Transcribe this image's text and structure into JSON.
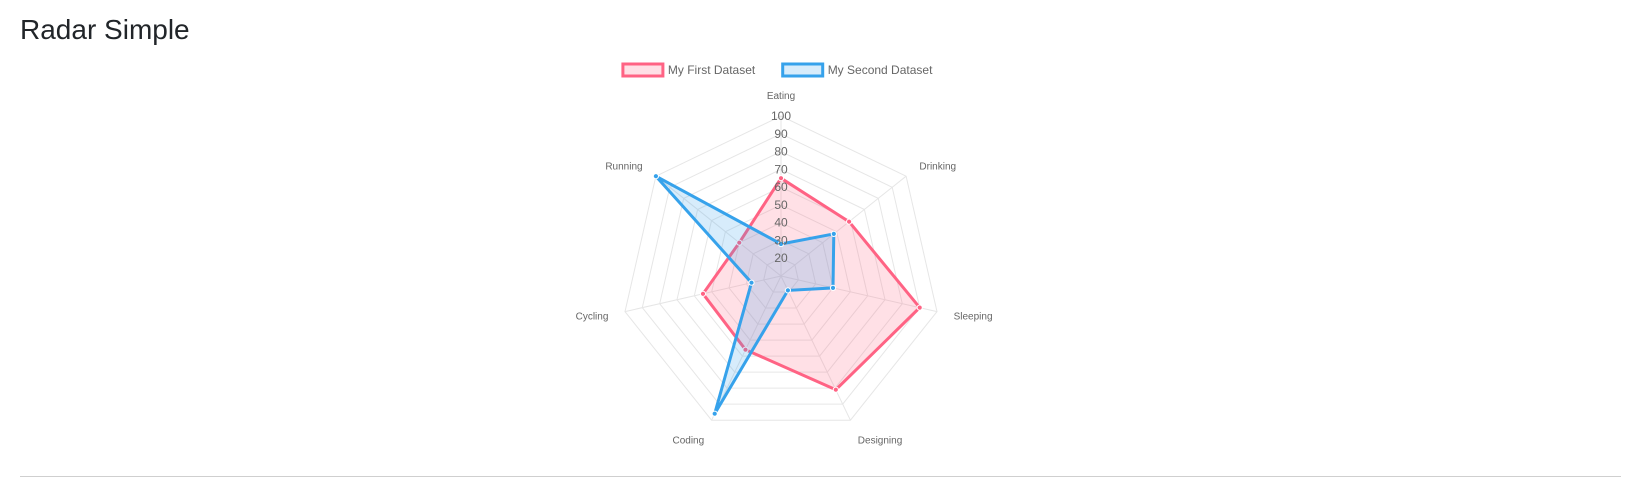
{
  "page": {
    "title": "Radar Simple"
  },
  "chart_data": {
    "type": "radar",
    "title": "",
    "labels": [
      "Eating",
      "Drinking",
      "Sleeping",
      "Designing",
      "Coding",
      "Cycling",
      "Running"
    ],
    "series": [
      {
        "name": "My First Dataset",
        "values": [
          65,
          59,
          90,
          81,
          56,
          55,
          40
        ],
        "border_color": "#ff6384",
        "fill_color": "rgba(255,99,132,0.2)"
      },
      {
        "name": "My Second Dataset",
        "values": [
          28,
          48,
          40,
          19,
          96,
          27,
          100
        ],
        "border_color": "#36a2eb",
        "fill_color": "rgba(54,162,235,0.2)"
      }
    ],
    "r_min": 10,
    "r_max": 100,
    "tick_labels": [
      "20",
      "30",
      "40",
      "50",
      "60",
      "70",
      "80",
      "90",
      "100"
    ],
    "grid": true,
    "legend_position": "top"
  }
}
